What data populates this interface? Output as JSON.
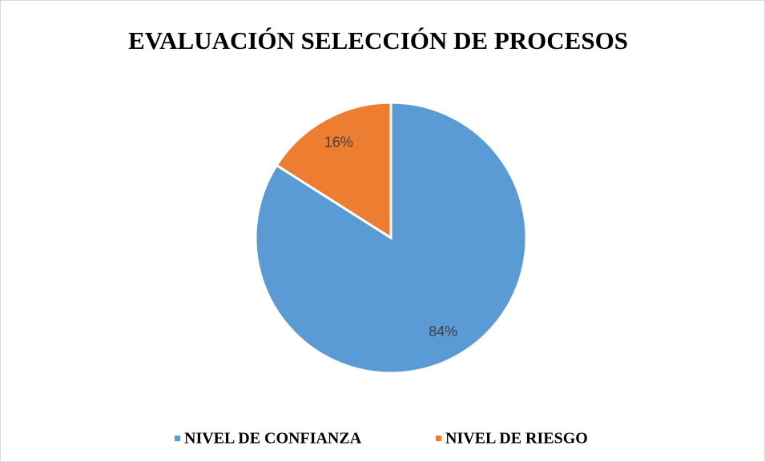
{
  "chart_data": {
    "type": "pie",
    "title": "EVALUACIÓN SELECCIÓN DE PROCESOS",
    "categories": [
      "NIVEL DE CONFIANZA",
      "NIVEL DE RIESGO"
    ],
    "values": [
      84,
      16
    ],
    "value_labels": [
      "84%",
      "16%"
    ],
    "colors": [
      "#5b9bd5",
      "#ed7d31"
    ],
    "legend": "bottom"
  }
}
